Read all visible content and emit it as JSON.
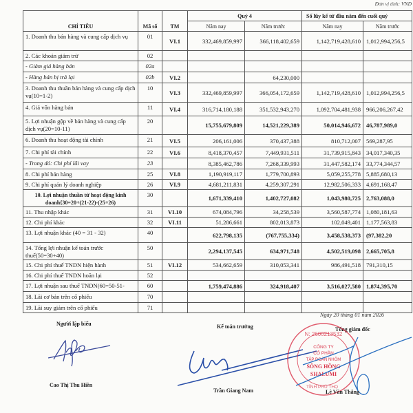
{
  "unit_note": "Đơn vị tính: VND",
  "table": {
    "headers": {
      "indicator": "CHỈ TIÊU",
      "code": "Mã số",
      "note": "TM",
      "quarter": "Quý 4",
      "ytd": "Số lũy kế từ đầu năm đến cuối quý",
      "this_year": "Năm nay",
      "last_year": "Năm trước"
    },
    "rows": [
      {
        "label": "1. Doanh thu bán hàng và cung cấp dịch vụ",
        "code": "01",
        "note": "VI.1",
        "values": [
          "332,469,859,997",
          "366,118,402,659",
          "1,142,719,428,610",
          "1,012,994,256,5"
        ]
      },
      {
        "label": "2. Các khoản giảm trừ",
        "code": "02",
        "note": "",
        "values": [
          "",
          "",
          "",
          ""
        ]
      },
      {
        "label": "- Giảm giá hàng bán",
        "code": "02a",
        "note": "",
        "italic": true,
        "values": [
          "",
          "",
          "",
          ""
        ]
      },
      {
        "label": "- Hàng bán bị trả lại",
        "code": "02b",
        "note": "VI.2",
        "italic": true,
        "values": [
          "",
          "64,230,000",
          "",
          ""
        ]
      },
      {
        "label": "3. Doanh thu thuần bán hàng và cung cấp dịch vụ(10=1-2)",
        "code": "10",
        "note": "VI.3",
        "values": [
          "332,469,859,997",
          "366,054,172,659",
          "1,142,719,428,610",
          "1,012,994,256,5"
        ]
      },
      {
        "label": "4. Giá vốn hàng bán",
        "code": "11",
        "note": "VI.4",
        "values": [
          "316,714,180,188",
          "351,532,943,270",
          "1,092,704,481,938",
          "966,206,267,42"
        ]
      },
      {
        "label": "5. Lợi nhuận gộp về bán hàng và cung cấp dịch vụ(20=10-11)",
        "code": "20",
        "note": "",
        "bold": true,
        "values": [
          "15,755,679,809",
          "14,521,229,389",
          "50,014,946,672",
          "46,787,989,0"
        ]
      },
      {
        "label": "6. Doanh thu hoạt động tài chính",
        "code": "21",
        "note": "VI.5",
        "values": [
          "206,161,006",
          "370,437,388",
          "810,712,007",
          "569,287,95"
        ]
      },
      {
        "label": "7. Chi phí tài chính",
        "code": "22",
        "note": "VI.6",
        "values": [
          "8,418,370,457",
          "7,449,931,511",
          "31,739,915,843",
          "34,017,340,35"
        ]
      },
      {
        "label": "- Trong đó: Chi phí lãi vay",
        "code": "23",
        "note": "",
        "italic": true,
        "values": [
          "8,385,462,786",
          "7,268,339,993",
          "31,447,582,174",
          "33,774,344,57"
        ]
      },
      {
        "label": "8. Chi phí bán hàng",
        "code": "25",
        "note": "VI.8",
        "values": [
          "1,190,919,117",
          "1,779,700,893",
          "5,059,255,778",
          "5,885,680,13"
        ]
      },
      {
        "label": "9. Chi phí quản lý doanh nghiệp",
        "code": "26",
        "note": "VI.9",
        "values": [
          "4,681,211,831",
          "4,259,307,291",
          "12,982,506,333",
          "4,691,168,47"
        ]
      },
      {
        "label": "10. Lợi nhuận thuần từ hoạt động kinh doanh{30=20+(21-22)-(25+26)",
        "code": "30",
        "note": "",
        "bold": true,
        "center": true,
        "values": [
          "1,671,339,410",
          "1,402,727,082",
          "1,043,980,725",
          "2,763,088,0"
        ]
      },
      {
        "label": "11. Thu nhập khác",
        "code": "31",
        "note": "VI.10",
        "values": [
          "674,084,796",
          "34,258,539",
          "3,560,587,774",
          "1,080,181,63"
        ]
      },
      {
        "label": "12. Chi phí khác",
        "code": "32",
        "note": "VI.11",
        "values": [
          "51,286,661",
          "802,013,873",
          "102,049,401",
          "1,177,563,83"
        ]
      },
      {
        "label": "13. Lợi nhuận khác (40 = 31 - 32)",
        "code": "40",
        "note": "",
        "bold": true,
        "values": [
          "622,798,135",
          "(767,755,334)",
          "3,458,538,373",
          "(97,382,20"
        ]
      },
      {
        "label": "14. Tổng lợi nhuận kế toán trước thuế(50=30+40)",
        "code": "50",
        "note": "",
        "bold": true,
        "values": [
          "2,294,137,545",
          "634,971,748",
          "4,502,519,098",
          "2,665,705,8"
        ]
      },
      {
        "label": "15. Chi phí thuế TNDN hiện hành",
        "code": "51",
        "note": "VI.12",
        "values": [
          "534,662,659",
          "310,053,341",
          "986,491,518",
          "791,310,15"
        ]
      },
      {
        "label": "16. Chi phí thuế TNDN hoãn lại",
        "code": "52",
        "note": "",
        "values": [
          "",
          "",
          "",
          ""
        ]
      },
      {
        "label": "17. Lợi nhuận sau thuế TNDN(60=50-51-",
        "code": "60",
        "note": "",
        "bold": true,
        "values": [
          "1,759,474,886",
          "324,918,407",
          "3,516,027,580",
          "1,874,395,70"
        ]
      },
      {
        "label": "18. Lãi cơ bản trên cổ phiếu",
        "code": "70",
        "note": "",
        "values": [
          "",
          "",
          "",
          ""
        ]
      },
      {
        "label": "19. Lãi suy giảm trên cổ phiếu",
        "code": "71",
        "note": "",
        "values": [
          "",
          "",
          "",
          ""
        ]
      }
    ]
  },
  "footer": {
    "date": "Ngày 20 tháng 01 năm 2026",
    "preparer_title": "Người lập biểu",
    "preparer_name": "Cao Thị Thu Hiền",
    "accountant_title": "Kế toán trưởng",
    "accountant_name": "Trần Giang Nam",
    "director_title": "Tổng giám đốc",
    "director_name": "Lê Văn Thắng",
    "stamp": {
      "text_ring": "M.S.D.N: 2600213532 - C.T.C.P - TỈNH PHÚ THỌ",
      "lines": [
        "CÔNG TY",
        "CỔ PHẦN",
        "TẬP ĐOÀN NHÔM",
        "SÔNG HỒNG",
        "SHALUMI"
      ],
      "color": "#d9364b"
    },
    "signature_color": "#2a4fa8"
  }
}
